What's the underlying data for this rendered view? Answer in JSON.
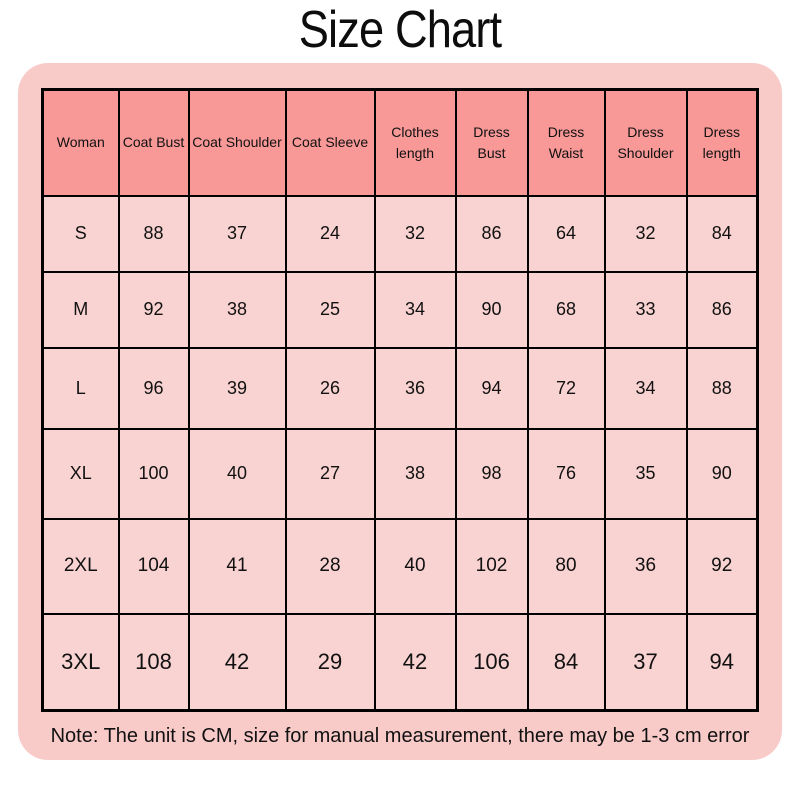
{
  "title": "Size Chart",
  "note": "Note: The unit is CM, size for manual measurement, there may be 1-3 cm error",
  "colors": {
    "page_background": "#ffffff",
    "card_background": "#f8cbc9",
    "header_cell_background": "#f89897",
    "data_cell_background": "#f9d3d1",
    "table_border": "#000000",
    "text": "#111111"
  },
  "chart_data": {
    "type": "table",
    "title": "Size Chart",
    "unit": "cm",
    "columns": [
      "Woman",
      "Coat Bust",
      "Coat Shoulder",
      "Coat Sleeve",
      "Clothes length",
      "Dress Bust",
      "Dress Waist",
      "Dress Shoulder",
      "Dress length"
    ],
    "rows": [
      {
        "size": "S",
        "values": [
          88,
          37,
          24,
          32,
          86,
          64,
          32,
          84
        ]
      },
      {
        "size": "M",
        "values": [
          92,
          38,
          25,
          34,
          90,
          68,
          33,
          86
        ]
      },
      {
        "size": "L",
        "values": [
          96,
          39,
          26,
          36,
          94,
          72,
          34,
          88
        ]
      },
      {
        "size": "XL",
        "values": [
          100,
          40,
          27,
          38,
          98,
          76,
          35,
          90
        ]
      },
      {
        "size": "2XL",
        "values": [
          104,
          41,
          28,
          40,
          102,
          80,
          36,
          92
        ]
      },
      {
        "size": "3XL",
        "values": [
          108,
          42,
          29,
          42,
          106,
          84,
          37,
          94
        ]
      }
    ]
  }
}
